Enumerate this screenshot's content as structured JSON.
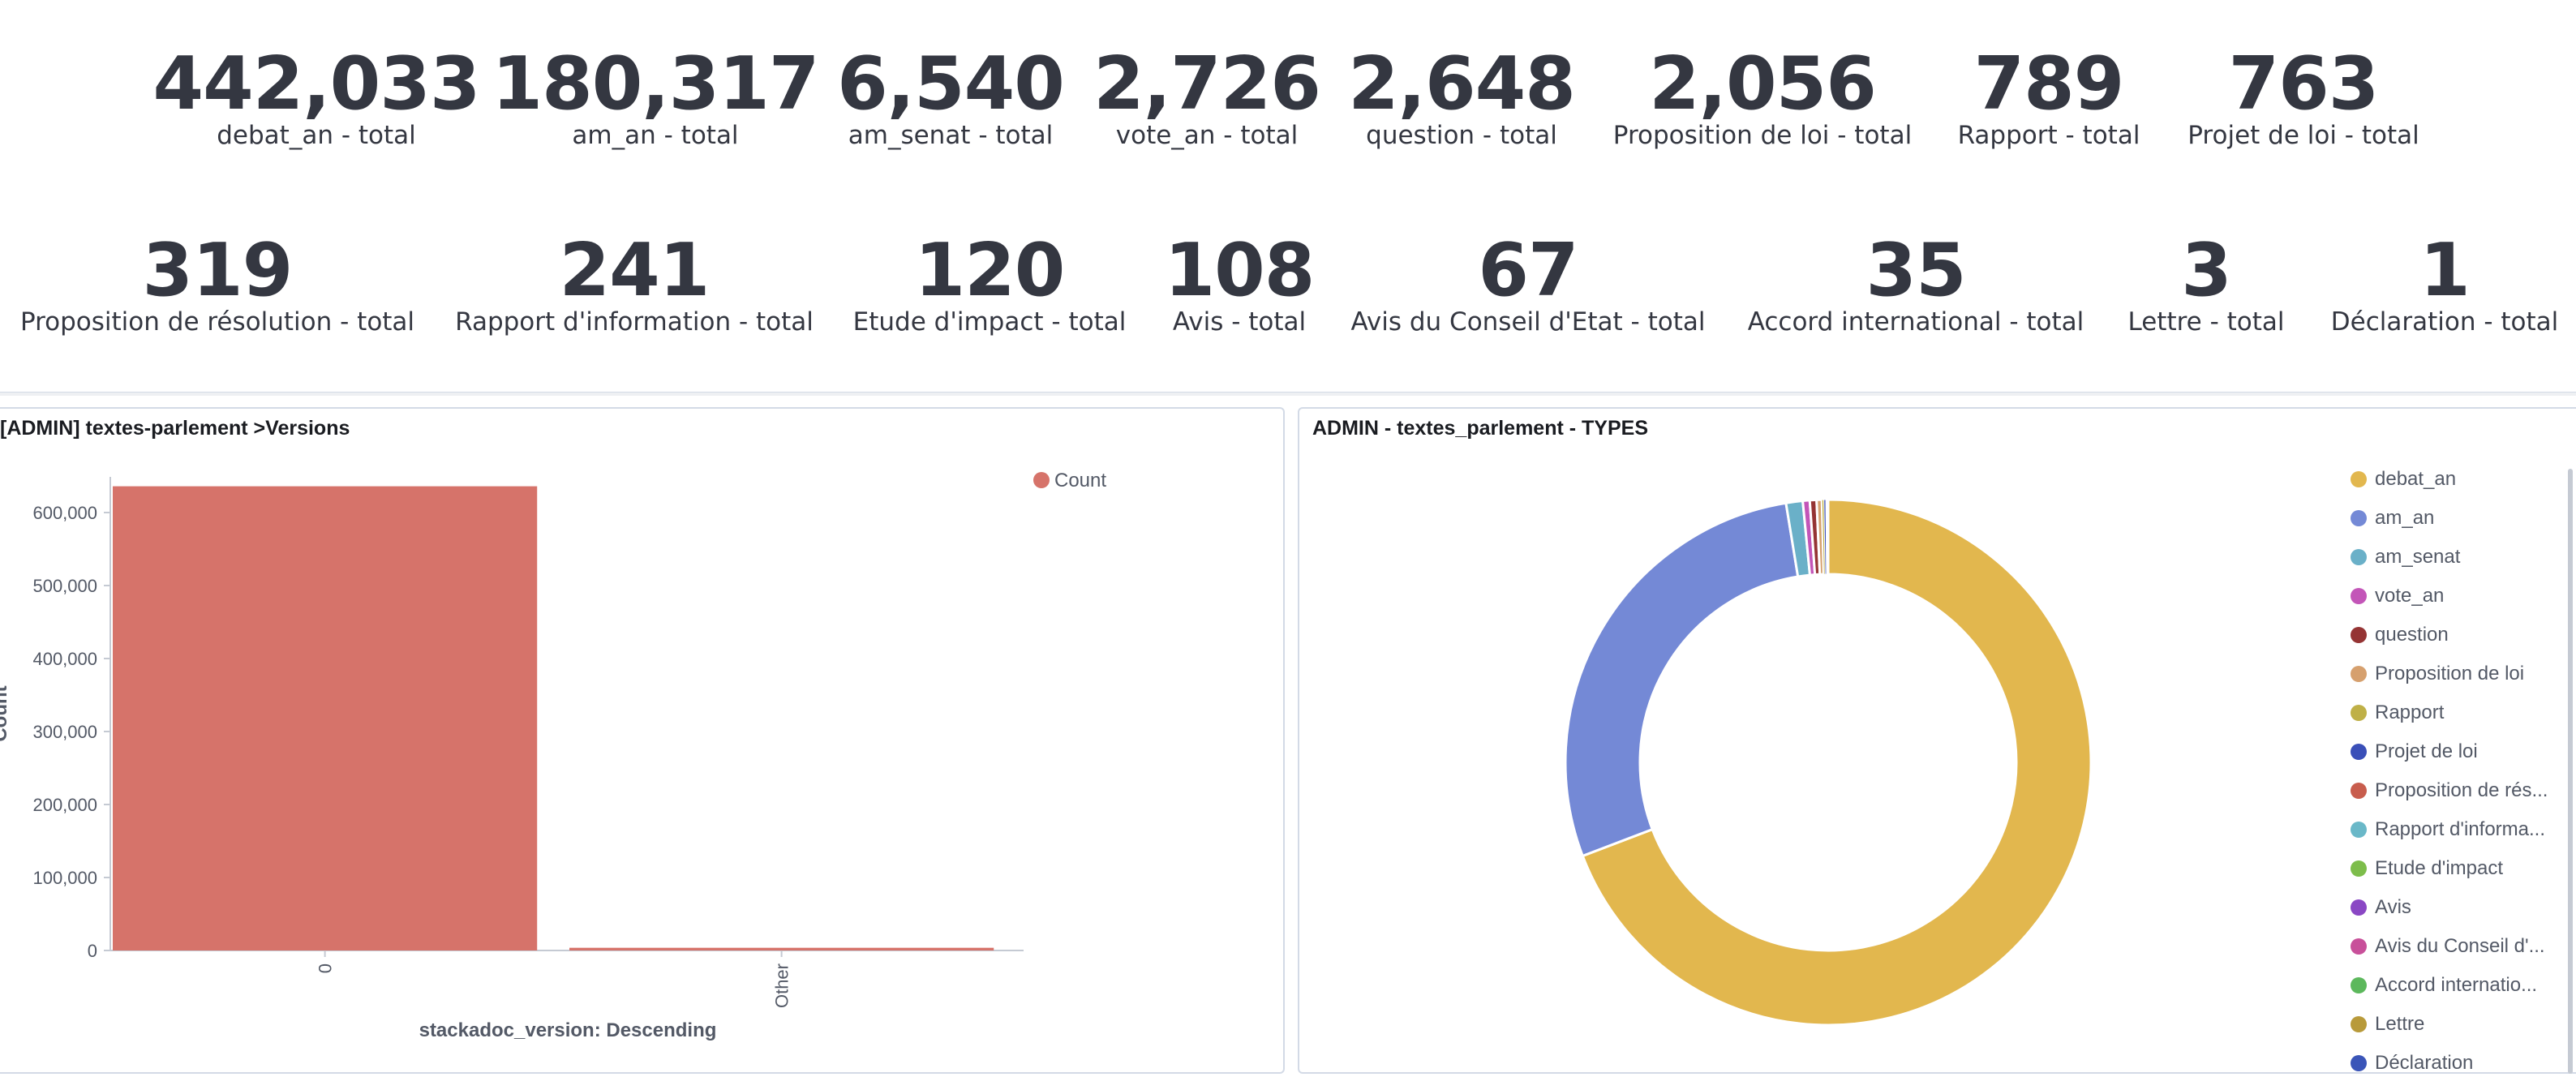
{
  "metrics_row1": [
    {
      "value": "442,033",
      "label": "debat_an - total"
    },
    {
      "value": "180,317",
      "label": "am_an - total"
    },
    {
      "value": "6,540",
      "label": "am_senat - total"
    },
    {
      "value": "2,726",
      "label": "vote_an - total"
    },
    {
      "value": "2,648",
      "label": "question - total"
    },
    {
      "value": "2,056",
      "label": "Proposition de loi - total"
    },
    {
      "value": "789",
      "label": "Rapport - total"
    },
    {
      "value": "763",
      "label": "Projet de loi - total"
    }
  ],
  "metrics_row2": [
    {
      "value": "319",
      "label": "Proposition de résolution - total"
    },
    {
      "value": "241",
      "label": "Rapport d'information - total"
    },
    {
      "value": "120",
      "label": "Etude d'impact - total"
    },
    {
      "value": "108",
      "label": "Avis - total"
    },
    {
      "value": "67",
      "label": "Avis du Conseil d'Etat - total"
    },
    {
      "value": "35",
      "label": "Accord international - total"
    },
    {
      "value": "3",
      "label": "Lettre - total"
    },
    {
      "value": "1",
      "label": "Déclaration - total"
    }
  ],
  "bar_panel": {
    "title": "[ADMIN] textes-parlement >Versions",
    "legend_label": "Count",
    "color": "#d6736a"
  },
  "pie_panel": {
    "title": "ADMIN - textes_parlement - TYPES"
  },
  "chart_data": [
    {
      "type": "bar",
      "title": "[ADMIN] textes-parlement >Versions",
      "categories": [
        "0",
        "Other"
      ],
      "series": [
        {
          "name": "Count",
          "values": [
            636000,
            3700
          ]
        }
      ],
      "xlabel": "stackadoc_version: Descending",
      "ylabel": "Count",
      "ylim": [
        0,
        650000
      ],
      "yticks": [
        0,
        100000,
        200000,
        300000,
        400000,
        500000,
        600000
      ],
      "ytick_labels": [
        "0",
        "100,000",
        "200,000",
        "300,000",
        "400,000",
        "500,000",
        "600,000"
      ],
      "legend": "top-right",
      "grid": false
    },
    {
      "type": "pie",
      "title": "ADMIN - textes_parlement - TYPES",
      "donut": true,
      "legend": "right",
      "slices": [
        {
          "label": "debat_an",
          "value": 442033,
          "color": "#e2b74e"
        },
        {
          "label": "am_an",
          "value": 180317,
          "color": "#7489d6"
        },
        {
          "label": "am_senat",
          "value": 6540,
          "color": "#6ab0c8"
        },
        {
          "label": "vote_an",
          "value": 2726,
          "color": "#c355b8"
        },
        {
          "label": "question",
          "value": 2648,
          "color": "#953434"
        },
        {
          "label": "Proposition de loi",
          "value": 2056,
          "color": "#d6a06e"
        },
        {
          "label": "Rapport",
          "value": 789,
          "color": "#bfb047"
        },
        {
          "label": "Projet de loi",
          "value": 763,
          "color": "#3a4fb8"
        },
        {
          "label": "Proposition de rés...",
          "value": 319,
          "color": "#c85d4d"
        },
        {
          "label": "Rapport d'informa...",
          "value": 241,
          "color": "#6ab8c8"
        },
        {
          "label": "Etude d'impact",
          "value": 120,
          "color": "#7dbd4b"
        },
        {
          "label": "Avis",
          "value": 108,
          "color": "#8a47c4"
        },
        {
          "label": "Avis du Conseil d'...",
          "value": 67,
          "color": "#c8509a"
        },
        {
          "label": "Accord internatio...",
          "value": 35,
          "color": "#5cb85c"
        },
        {
          "label": "Lettre",
          "value": 3,
          "color": "#b89a3a"
        },
        {
          "label": "Déclaration",
          "value": 1,
          "color": "#3a55b8"
        }
      ]
    }
  ]
}
